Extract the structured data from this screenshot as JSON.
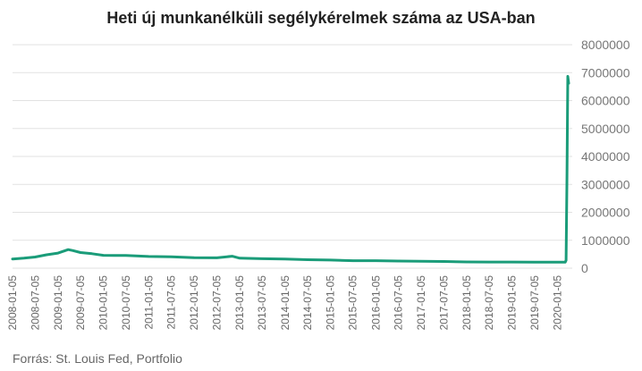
{
  "title": "Heti új munkanélküli segélykérelmek száma az USA-ban",
  "source": "Forrás: St. Louis Fed, Portfolio",
  "colors": {
    "line": "#1a9c79",
    "grid": "#e2e2e2"
  },
  "chart_data": {
    "type": "line",
    "title": "Heti új munkanélküli segélykérelmek száma az USA-ban",
    "xlabel": "",
    "ylabel": "",
    "ylim": [
      0,
      8000000
    ],
    "yticks": [
      "0",
      "1000000",
      "2000000",
      "3000000",
      "4000000",
      "5000000",
      "6000000",
      "7000000",
      "8000000"
    ],
    "grid": true,
    "legend": "none",
    "xticks": [
      "2008-01-05",
      "2008-07-05",
      "2009-01-05",
      "2009-07-05",
      "2010-01-05",
      "2010-07-05",
      "2011-01-05",
      "2011-07-05",
      "2012-01-05",
      "2012-07-05",
      "2013-01-05",
      "2013-07-05",
      "2014-01-05",
      "2014-07-05",
      "2015-01-05",
      "2015-07-05",
      "2016-01-05",
      "2016-07-05",
      "2017-01-05",
      "2017-07-05",
      "2018-01-05",
      "2018-07-05",
      "2019-01-05",
      "2019-07-05",
      "2020-01-05"
    ],
    "series": [
      {
        "x": [
          "2008-01-05",
          "2008-04-05",
          "2008-07-05",
          "2008-10-05",
          "2009-01-05",
          "2009-03-28",
          "2009-05-05",
          "2009-07-05",
          "2009-10-05",
          "2010-01-05",
          "2010-07-05",
          "2011-01-05",
          "2011-07-05",
          "2012-01-05",
          "2012-07-05",
          "2012-11-05",
          "2013-01-05",
          "2013-07-05",
          "2014-01-05",
          "2014-07-05",
          "2015-01-05",
          "2015-07-05",
          "2016-01-05",
          "2016-07-05",
          "2017-01-05",
          "2017-07-05",
          "2018-01-05",
          "2018-07-05",
          "2019-01-05",
          "2019-07-05",
          "2020-01-05",
          "2020-03-07",
          "2020-03-14",
          "2020-03-21",
          "2020-03-28",
          "2020-04-04"
        ],
        "values": [
          330000,
          360000,
          400000,
          480000,
          540000,
          665000,
          630000,
          560000,
          520000,
          460000,
          455000,
          420000,
          405000,
          375000,
          370000,
          430000,
          360000,
          340000,
          330000,
          305000,
          290000,
          270000,
          270000,
          255000,
          245000,
          240000,
          225000,
          220000,
          220000,
          215000,
          215000,
          215000,
          282000,
          3307000,
          6867000,
          6615000
        ]
      }
    ]
  }
}
